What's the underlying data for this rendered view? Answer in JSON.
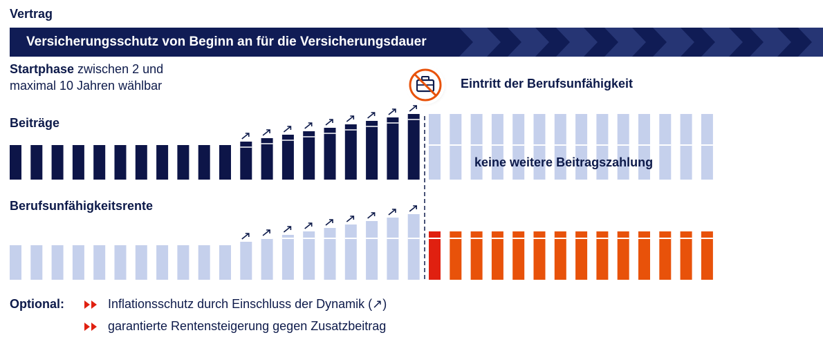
{
  "title": "Vertrag",
  "banner": {
    "text": "Versicherungsschutz von Beginn an für die Versicherungsdauer"
  },
  "startphase": {
    "bold": "Startphase",
    "line1_rest": " zwischen 2 und",
    "line2": "maximal 10 Jahren wählbar"
  },
  "event": {
    "icon": "no-briefcase-icon",
    "label": "Eintritt der Berufsunfähigkeit"
  },
  "beitraege": {
    "label": "Beiträge",
    "no_payment_text": "keine weitere Beitragszahlung"
  },
  "rente": {
    "label": "Berufsunfähigkeitsrente"
  },
  "chart_data": {
    "type": "bar",
    "description_units": "relative amount per period",
    "periods": 34,
    "event_index": 20,
    "beitraege": [
      1,
      1,
      1,
      1,
      1,
      1,
      1,
      1,
      1,
      1,
      1,
      1.1,
      1.2,
      1.3,
      1.4,
      1.5,
      1.6,
      1.7,
      1.8,
      1.9,
      1.9,
      1.9,
      1.9,
      1.9,
      1.9,
      1.9,
      1.9,
      1.9,
      1.9,
      1.9,
      1.9,
      1.9,
      1.9,
      1.9
    ],
    "rente": [
      1,
      1,
      1,
      1,
      1,
      1,
      1,
      1,
      1,
      1,
      1,
      1.1,
      1.2,
      1.3,
      1.4,
      1.5,
      1.6,
      1.7,
      1.8,
      1.9,
      1.4,
      1.4,
      1.4,
      1.4,
      1.4,
      1.4,
      1.4,
      1.4,
      1.4,
      1.4,
      1.4,
      1.4,
      1.4,
      1.4
    ],
    "dynamic_start_index": 11,
    "colors": {
      "paid": "#0d1548",
      "unpaid": "#c5d0ec",
      "rente_pending": "#c5d0ec",
      "rente_active": "#e8520a",
      "rente_first": "#e02010"
    }
  },
  "optional": {
    "label": "Optional:",
    "items": [
      "Inflationsschutz durch Einschluss der Dynamik (↗)",
      "garantierte Rentensteigerung gegen Zusatzbeitrag"
    ]
  },
  "colors": {
    "navy": "#0d1a4a",
    "banner": "#101c55",
    "orange": "#e8520a"
  }
}
